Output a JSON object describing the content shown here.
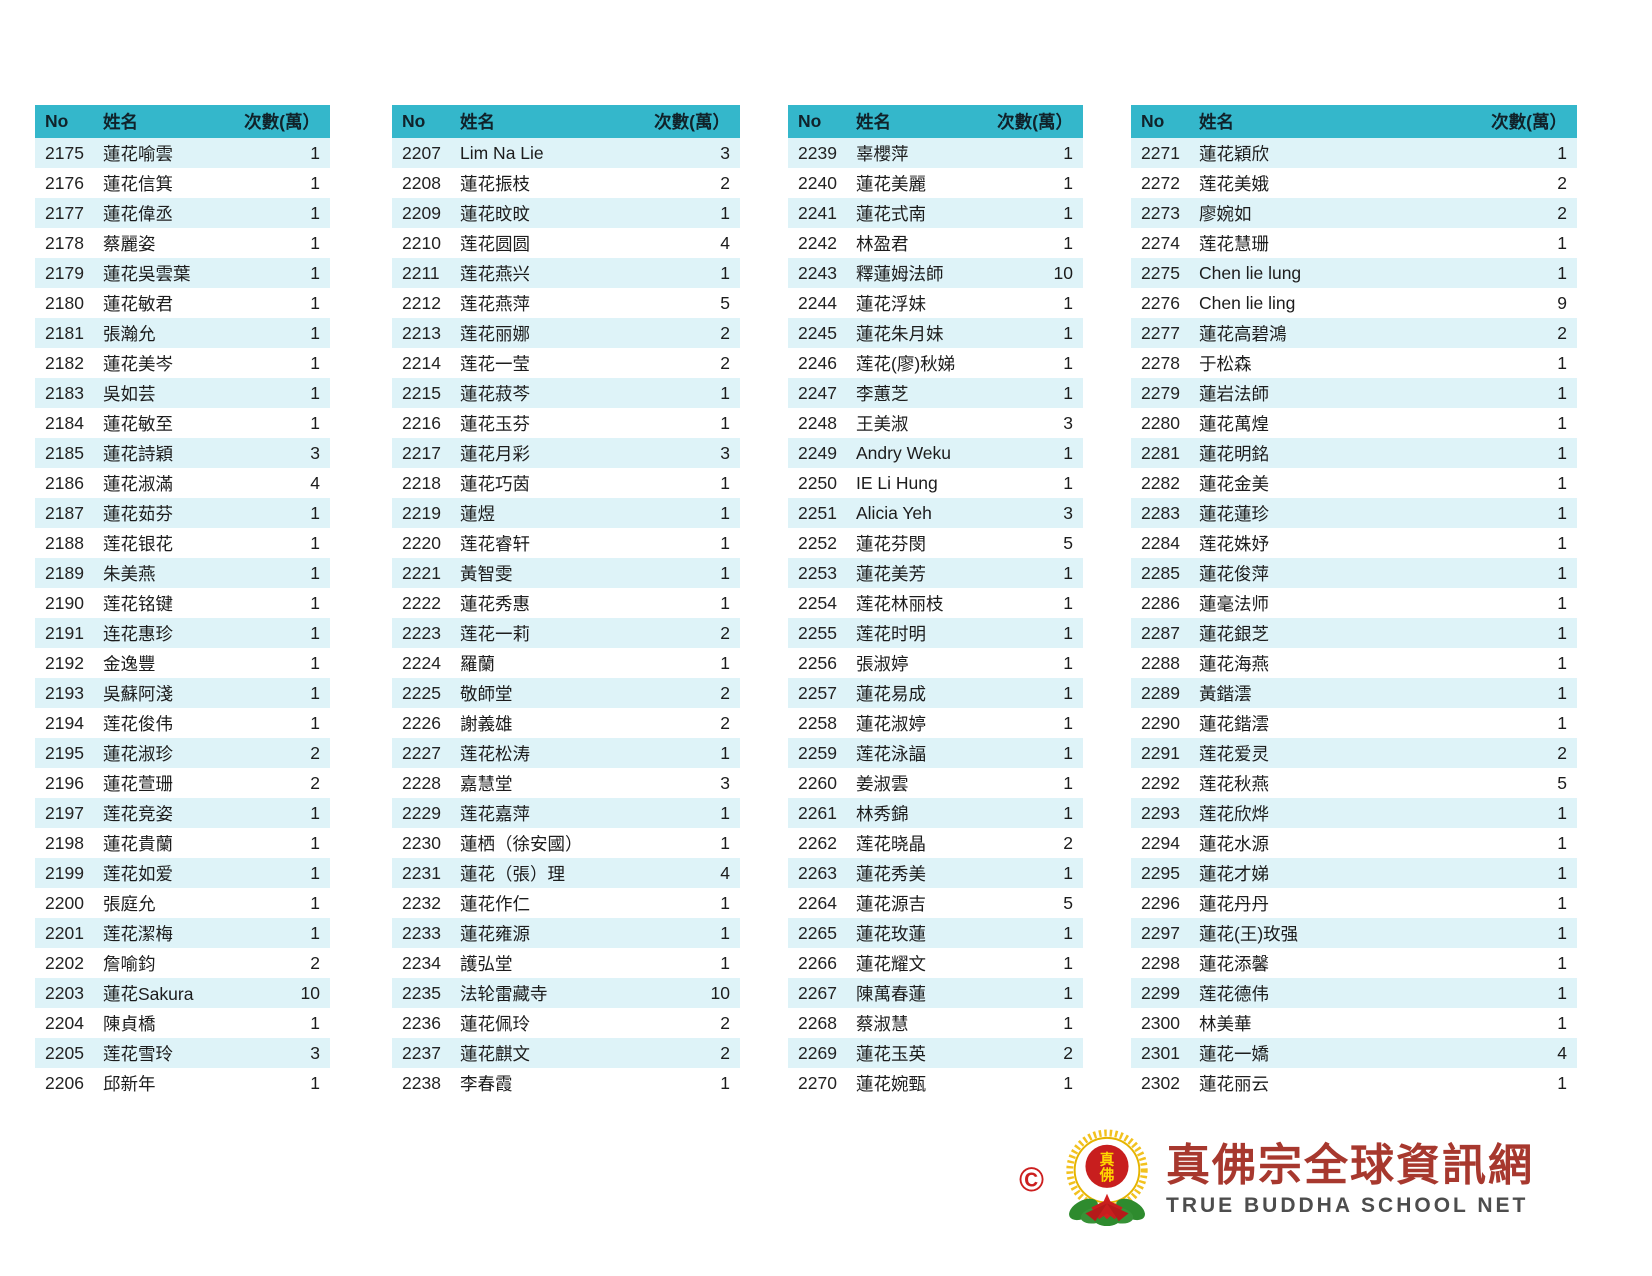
{
  "columns": {
    "no": "No",
    "name": "姓名",
    "count": "次數(萬）"
  },
  "colors": {
    "header_bg": "#34b7cb",
    "row_alt_bg": "#def3f8",
    "copyright_red": "#cc1f1f",
    "title_red": "#a7382e",
    "subtitle_gray": "#4d4d4d",
    "emblem_gold": "#f2c11e",
    "emblem_green": "#2e8b2e",
    "emblem_red": "#c81e1e"
  },
  "tables": [
    {
      "rows": [
        [
          2175,
          "蓮花喻雲",
          1
        ],
        [
          2176,
          "蓮花信箕",
          1
        ],
        [
          2177,
          "蓮花偉丞",
          1
        ],
        [
          2178,
          "蔡麗姿",
          1
        ],
        [
          2179,
          "蓮花吳雲葉",
          1
        ],
        [
          2180,
          "蓮花敏君",
          1
        ],
        [
          2181,
          "張瀚允",
          1
        ],
        [
          2182,
          "蓮花美岑",
          1
        ],
        [
          2183,
          "吳如芸",
          1
        ],
        [
          2184,
          "蓮花敏至",
          1
        ],
        [
          2185,
          "蓮花詩穎",
          3
        ],
        [
          2186,
          "蓮花淑滿",
          4
        ],
        [
          2187,
          "蓮花茹芬",
          1
        ],
        [
          2188,
          "莲花银花",
          1
        ],
        [
          2189,
          "朱美燕",
          1
        ],
        [
          2190,
          "莲花铭键",
          1
        ],
        [
          2191,
          "连花惠珍",
          1
        ],
        [
          2192,
          "金逸豐",
          1
        ],
        [
          2193,
          "吳蘇阿淺",
          1
        ],
        [
          2194,
          "莲花俊伟",
          1
        ],
        [
          2195,
          "蓮花淑珍",
          2
        ],
        [
          2196,
          "蓮花萱珊",
          2
        ],
        [
          2197,
          "莲花竞姿",
          1
        ],
        [
          2198,
          "蓮花貴蘭",
          1
        ],
        [
          2199,
          "莲花如爱",
          1
        ],
        [
          2200,
          "張庭允",
          1
        ],
        [
          2201,
          "莲花潔梅",
          1
        ],
        [
          2202,
          "詹喻鈞",
          2
        ],
        [
          2203,
          "蓮花Sakura",
          10
        ],
        [
          2204,
          "陳貞橋",
          1
        ],
        [
          2205,
          "莲花雪玲",
          3
        ],
        [
          2206,
          "邱新年",
          1
        ]
      ]
    },
    {
      "rows": [
        [
          2207,
          "Lim Na Lie",
          3
        ],
        [
          2208,
          "蓮花振枝",
          2
        ],
        [
          2209,
          "蓮花旼旼",
          1
        ],
        [
          2210,
          "莲花圆圆",
          4
        ],
        [
          2211,
          "莲花燕兴",
          1
        ],
        [
          2212,
          "莲花燕萍",
          5
        ],
        [
          2213,
          "莲花丽娜",
          2
        ],
        [
          2214,
          "莲花一莹",
          2
        ],
        [
          2215,
          "蓮花菽芩",
          1
        ],
        [
          2216,
          "蓮花玉芬",
          1
        ],
        [
          2217,
          "蓮花月彩",
          3
        ],
        [
          2218,
          "蓮花巧茵",
          1
        ],
        [
          2219,
          "蓮煜",
          1
        ],
        [
          2220,
          "莲花睿轩",
          1
        ],
        [
          2221,
          "黃智雯",
          1
        ],
        [
          2222,
          "蓮花秀惠",
          1
        ],
        [
          2223,
          "莲花一莉",
          2
        ],
        [
          2224,
          "羅蘭",
          1
        ],
        [
          2225,
          "敬師堂",
          2
        ],
        [
          2226,
          "謝義雄",
          2
        ],
        [
          2227,
          "莲花松涛",
          1
        ],
        [
          2228,
          "嘉慧堂",
          3
        ],
        [
          2229,
          "莲花嘉萍",
          1
        ],
        [
          2230,
          "蓮栖（徐安國）",
          1
        ],
        [
          2231,
          "蓮花（張）理",
          4
        ],
        [
          2232,
          "蓮花作仁",
          1
        ],
        [
          2233,
          "蓮花雍源",
          1
        ],
        [
          2234,
          "護弘堂",
          1
        ],
        [
          2235,
          "法轮雷藏寺",
          10
        ],
        [
          2236,
          "蓮花佩玲",
          2
        ],
        [
          2237,
          "蓮花麒文",
          2
        ],
        [
          2238,
          "李春霞",
          1
        ]
      ]
    },
    {
      "rows": [
        [
          2239,
          "辜櫻萍",
          1
        ],
        [
          2240,
          "蓮花美麗",
          1
        ],
        [
          2241,
          "蓮花式南",
          1
        ],
        [
          2242,
          "林盈君",
          1
        ],
        [
          2243,
          "釋蓮姆法師",
          10
        ],
        [
          2244,
          "蓮花浮妹",
          1
        ],
        [
          2245,
          "蓮花朱月妹",
          1
        ],
        [
          2246,
          "莲花(廖)秋娣",
          1
        ],
        [
          2247,
          "李蕙芝",
          1
        ],
        [
          2248,
          "王美淑",
          3
        ],
        [
          2249,
          "Andry Weku",
          1
        ],
        [
          2250,
          "IE Li Hung",
          1
        ],
        [
          2251,
          "Alicia Yeh",
          3
        ],
        [
          2252,
          "蓮花芬閔",
          5
        ],
        [
          2253,
          "蓮花美芳",
          1
        ],
        [
          2254,
          "莲花林丽枝",
          1
        ],
        [
          2255,
          "莲花时明",
          1
        ],
        [
          2256,
          "張淑婷",
          1
        ],
        [
          2257,
          "蓮花易成",
          1
        ],
        [
          2258,
          "蓮花淑婷",
          1
        ],
        [
          2259,
          "莲花泳諨",
          1
        ],
        [
          2260,
          "姜淑雲",
          1
        ],
        [
          2261,
          "林秀錦",
          1
        ],
        [
          2262,
          "莲花晓晶",
          2
        ],
        [
          2263,
          "蓮花秀美",
          1
        ],
        [
          2264,
          "蓮花源吉",
          5
        ],
        [
          2265,
          "蓮花玫蓮",
          1
        ],
        [
          2266,
          "蓮花耀文",
          1
        ],
        [
          2267,
          "陳萬春蓮",
          1
        ],
        [
          2268,
          "蔡淑慧",
          1
        ],
        [
          2269,
          "蓮花玉英",
          2
        ],
        [
          2270,
          "蓮花婉甄",
          1
        ]
      ]
    },
    {
      "rows": [
        [
          2271,
          "蓮花穎欣",
          1
        ],
        [
          2272,
          "莲花美娥",
          2
        ],
        [
          2273,
          "廖婉如",
          2
        ],
        [
          2274,
          "莲花慧珊",
          1
        ],
        [
          2275,
          "Chen lie lung",
          1
        ],
        [
          2276,
          "Chen lie ling",
          9
        ],
        [
          2277,
          "蓮花高碧鴻",
          2
        ],
        [
          2278,
          "于松森",
          1
        ],
        [
          2279,
          "蓮岩法師",
          1
        ],
        [
          2280,
          "蓮花萬煌",
          1
        ],
        [
          2281,
          "蓮花明銘",
          1
        ],
        [
          2282,
          "蓮花金美",
          1
        ],
        [
          2283,
          "蓮花蓮珍",
          1
        ],
        [
          2284,
          "莲花姝妤",
          1
        ],
        [
          2285,
          "蓮花俊萍",
          1
        ],
        [
          2286,
          "蓮毫法师",
          1
        ],
        [
          2287,
          "蓮花銀芝",
          1
        ],
        [
          2288,
          "蓮花海燕",
          1
        ],
        [
          2289,
          "黃鍇澐",
          1
        ],
        [
          2290,
          "蓮花鍇澐",
          1
        ],
        [
          2291,
          "莲花爱灵",
          2
        ],
        [
          2292,
          "莲花秋燕",
          5
        ],
        [
          2293,
          "莲花欣烨",
          1
        ],
        [
          2294,
          "蓮花水源",
          1
        ],
        [
          2295,
          "蓮花才娣",
          1
        ],
        [
          2296,
          "蓮花丹丹",
          1
        ],
        [
          2297,
          "蓮花(王)玫强",
          1
        ],
        [
          2298,
          "蓮花添馨",
          1
        ],
        [
          2299,
          "莲花德伟",
          1
        ],
        [
          2300,
          "林美華",
          1
        ],
        [
          2301,
          "蓮花一嬌",
          4
        ],
        [
          2302,
          "蓮花丽云",
          1
        ]
      ]
    }
  ],
  "footer": {
    "copyright_symbol": "©",
    "emblem_name": "true-buddha-school-emblem",
    "logo_title": "真佛宗全球資訊網",
    "logo_subtitle": "TRUE BUDDHA SCHOOL NET"
  }
}
